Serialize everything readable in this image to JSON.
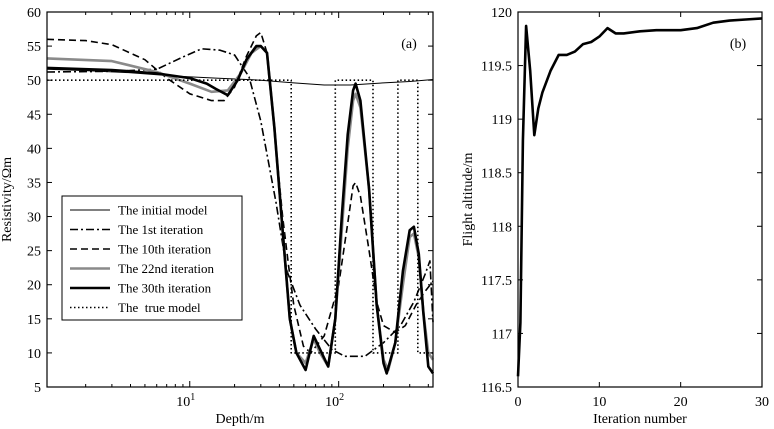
{
  "chart_data": [
    {
      "type": "line",
      "panel_label": "(a)",
      "xlabel": "Depth/m",
      "ylabel": "Resistivity/Ωm",
      "x_scale": "log",
      "xlim": [
        1.1,
        430
      ],
      "ylim": [
        5,
        60
      ],
      "x_tick_labels": [
        {
          "value": 10,
          "base": "10",
          "exp": "1"
        },
        {
          "value": 100,
          "base": "10",
          "exp": "2"
        }
      ],
      "y_ticks": [
        5,
        10,
        15,
        20,
        25,
        30,
        35,
        40,
        45,
        50,
        55,
        60
      ],
      "y_tick_labels": [
        "5",
        "10",
        "15",
        "20",
        "25",
        "30",
        "35",
        "40",
        "45",
        "50",
        "55",
        "60"
      ],
      "legend": {
        "placement": "center-left"
      },
      "series": [
        {
          "name": "The initial model",
          "color": "#000000",
          "style": "solid",
          "weight": "thin",
          "points": [
            [
              1.1,
              51.6
            ],
            [
              2,
              51.4
            ],
            [
              4,
              51.1
            ],
            [
              8,
              50.6
            ],
            [
              15,
              50.3
            ],
            [
              30,
              50.0
            ],
            [
              50,
              49.6
            ],
            [
              80,
              49.3
            ],
            [
              120,
              49.3
            ],
            [
              200,
              49.6
            ],
            [
              300,
              49.8
            ],
            [
              430,
              50.1
            ]
          ]
        },
        {
          "name": "The 1st iteration",
          "color": "#000000",
          "style": "dashdot",
          "weight": "normal",
          "points": [
            [
              1.1,
              51.2
            ],
            [
              3,
              51.3
            ],
            [
              6,
              51.6
            ],
            [
              9,
              53.4
            ],
            [
              12,
              54.6
            ],
            [
              16,
              54.4
            ],
            [
              20,
              53.7
            ],
            [
              25,
              50.5
            ],
            [
              30,
              44
            ],
            [
              38,
              32
            ],
            [
              45,
              22
            ],
            [
              55,
              17
            ],
            [
              70,
              13.5
            ],
            [
              90,
              10.5
            ],
            [
              110,
              9.5
            ],
            [
              150,
              9.5
            ],
            [
              200,
              11.5
            ],
            [
              260,
              14
            ],
            [
              320,
              17.5
            ],
            [
              380,
              21.5
            ],
            [
              410,
              23.5
            ],
            [
              430,
              14.5
            ]
          ]
        },
        {
          "name": "The 10th iteration",
          "color": "#000000",
          "style": "dashed",
          "weight": "normal",
          "points": [
            [
              1.1,
              56
            ],
            [
              2,
              55.8
            ],
            [
              3,
              55.2
            ],
            [
              5,
              53
            ],
            [
              7,
              50.3
            ],
            [
              10,
              48
            ],
            [
              14,
              47
            ],
            [
              17,
              47
            ],
            [
              20,
              49
            ],
            [
              24,
              53.5
            ],
            [
              28,
              56.5
            ],
            [
              30,
              57
            ],
            [
              33,
              54
            ],
            [
              38,
              40
            ],
            [
              42,
              30
            ],
            [
              46,
              23
            ],
            [
              50,
              17
            ],
            [
              58,
              11
            ],
            [
              65,
              10
            ],
            [
              80,
              12.5
            ],
            [
              100,
              20
            ],
            [
              115,
              29
            ],
            [
              125,
              34.5
            ],
            [
              130,
              35
            ],
            [
              140,
              33
            ],
            [
              160,
              25
            ],
            [
              180,
              17.5
            ],
            [
              200,
              14
            ],
            [
              240,
              13
            ],
            [
              280,
              14
            ],
            [
              330,
              17
            ],
            [
              380,
              19
            ],
            [
              430,
              20.5
            ]
          ]
        },
        {
          "name": "The 22nd iteration",
          "color": "#8a8a8a",
          "style": "solid",
          "weight": "thick",
          "points": [
            [
              1.1,
              53.2
            ],
            [
              3,
              52.8
            ],
            [
              6,
              51.2
            ],
            [
              10,
              49.5
            ],
            [
              14,
              48.3
            ],
            [
              18,
              48.5
            ],
            [
              22,
              51
            ],
            [
              26,
              54
            ],
            [
              30,
              55
            ],
            [
              33,
              54
            ],
            [
              37,
              43
            ],
            [
              42,
              28
            ],
            [
              47,
              15
            ],
            [
              52,
              10
            ],
            [
              60,
              8.5
            ],
            [
              68,
              12
            ],
            [
              75,
              10
            ],
            [
              85,
              8
            ],
            [
              95,
              15
            ],
            [
              105,
              28
            ],
            [
              115,
              40
            ],
            [
              125,
              47
            ],
            [
              130,
              48
            ],
            [
              140,
              46
            ],
            [
              160,
              34
            ],
            [
              180,
              17
            ],
            [
              200,
              9
            ],
            [
              215,
              7.5
            ],
            [
              240,
              11.5
            ],
            [
              270,
              20
            ],
            [
              300,
              27
            ],
            [
              320,
              27.5
            ],
            [
              345,
              24
            ],
            [
              370,
              16
            ],
            [
              400,
              10
            ],
            [
              430,
              9
            ]
          ]
        },
        {
          "name": "The 30th iteration",
          "color": "#000000",
          "style": "solid",
          "weight": "thick",
          "points": [
            [
              1.1,
              51.8
            ],
            [
              3,
              51.5
            ],
            [
              6,
              51.0
            ],
            [
              10,
              50.3
            ],
            [
              13,
              49.5
            ],
            [
              15,
              48.7
            ],
            [
              18,
              47.8
            ],
            [
              21,
              50
            ],
            [
              24,
              53
            ],
            [
              28,
              55
            ],
            [
              30,
              55
            ],
            [
              33,
              54
            ],
            [
              37,
              43
            ],
            [
              42,
              28
            ],
            [
              47,
              15
            ],
            [
              52,
              10
            ],
            [
              60,
              7.5
            ],
            [
              68,
              12.5
            ],
            [
              75,
              10.5
            ],
            [
              85,
              8
            ],
            [
              95,
              15
            ],
            [
              105,
              30
            ],
            [
              115,
              42
            ],
            [
              125,
              48.5
            ],
            [
              130,
              49.5
            ],
            [
              140,
              47
            ],
            [
              160,
              34
            ],
            [
              180,
              17
            ],
            [
              200,
              8.5
            ],
            [
              210,
              7
            ],
            [
              240,
              11.5
            ],
            [
              270,
              22
            ],
            [
              300,
              28
            ],
            [
              320,
              28.5
            ],
            [
              345,
              24.5
            ],
            [
              370,
              16
            ],
            [
              400,
              8
            ],
            [
              430,
              7
            ]
          ]
        },
        {
          "name": "The  true model",
          "color": "#000000",
          "style": "dotted",
          "weight": "normal",
          "points": [
            [
              1.1,
              50
            ],
            [
              48,
              50
            ],
            [
              48,
              10
            ],
            [
              95,
              10
            ],
            [
              95,
              50
            ],
            [
              170,
              50
            ],
            [
              170,
              10
            ],
            [
              250,
              10
            ],
            [
              250,
              50
            ],
            [
              340,
              50
            ],
            [
              340,
              10
            ],
            [
              430,
              10
            ]
          ]
        }
      ]
    },
    {
      "type": "line",
      "panel_label": "(b)",
      "xlabel": "Iteration number",
      "ylabel": "Flight altitude/m",
      "xlim": [
        0,
        30
      ],
      "ylim": [
        116.5,
        120
      ],
      "x_ticks": [
        0,
        10,
        20,
        30
      ],
      "x_tick_labels": [
        "0",
        "10",
        "20",
        "30"
      ],
      "y_ticks": [
        116.5,
        117,
        117.5,
        118,
        118.5,
        119,
        119.5,
        120
      ],
      "y_tick_labels": [
        "116.5",
        "117",
        "117.5",
        "118",
        "118.5",
        "119",
        "119.5",
        "120"
      ],
      "series": [
        {
          "color": "#000000",
          "style": "solid",
          "weight": "thick",
          "points": [
            [
              0,
              116.6
            ],
            [
              0.3,
              117.1
            ],
            [
              0.6,
              118.8
            ],
            [
              1,
              119.87
            ],
            [
              1.5,
              119.45
            ],
            [
              2,
              118.85
            ],
            [
              2.5,
              119.1
            ],
            [
              3,
              119.25
            ],
            [
              4,
              119.45
            ],
            [
              5,
              119.6
            ],
            [
              6,
              119.6
            ],
            [
              7,
              119.63
            ],
            [
              8,
              119.7
            ],
            [
              9,
              119.72
            ],
            [
              10,
              119.77
            ],
            [
              11,
              119.85
            ],
            [
              12,
              119.8
            ],
            [
              13,
              119.8
            ],
            [
              15,
              119.82
            ],
            [
              17,
              119.83
            ],
            [
              20,
              119.83
            ],
            [
              22,
              119.85
            ],
            [
              24,
              119.9
            ],
            [
              26,
              119.92
            ],
            [
              28,
              119.93
            ],
            [
              30,
              119.94
            ]
          ]
        }
      ]
    }
  ]
}
